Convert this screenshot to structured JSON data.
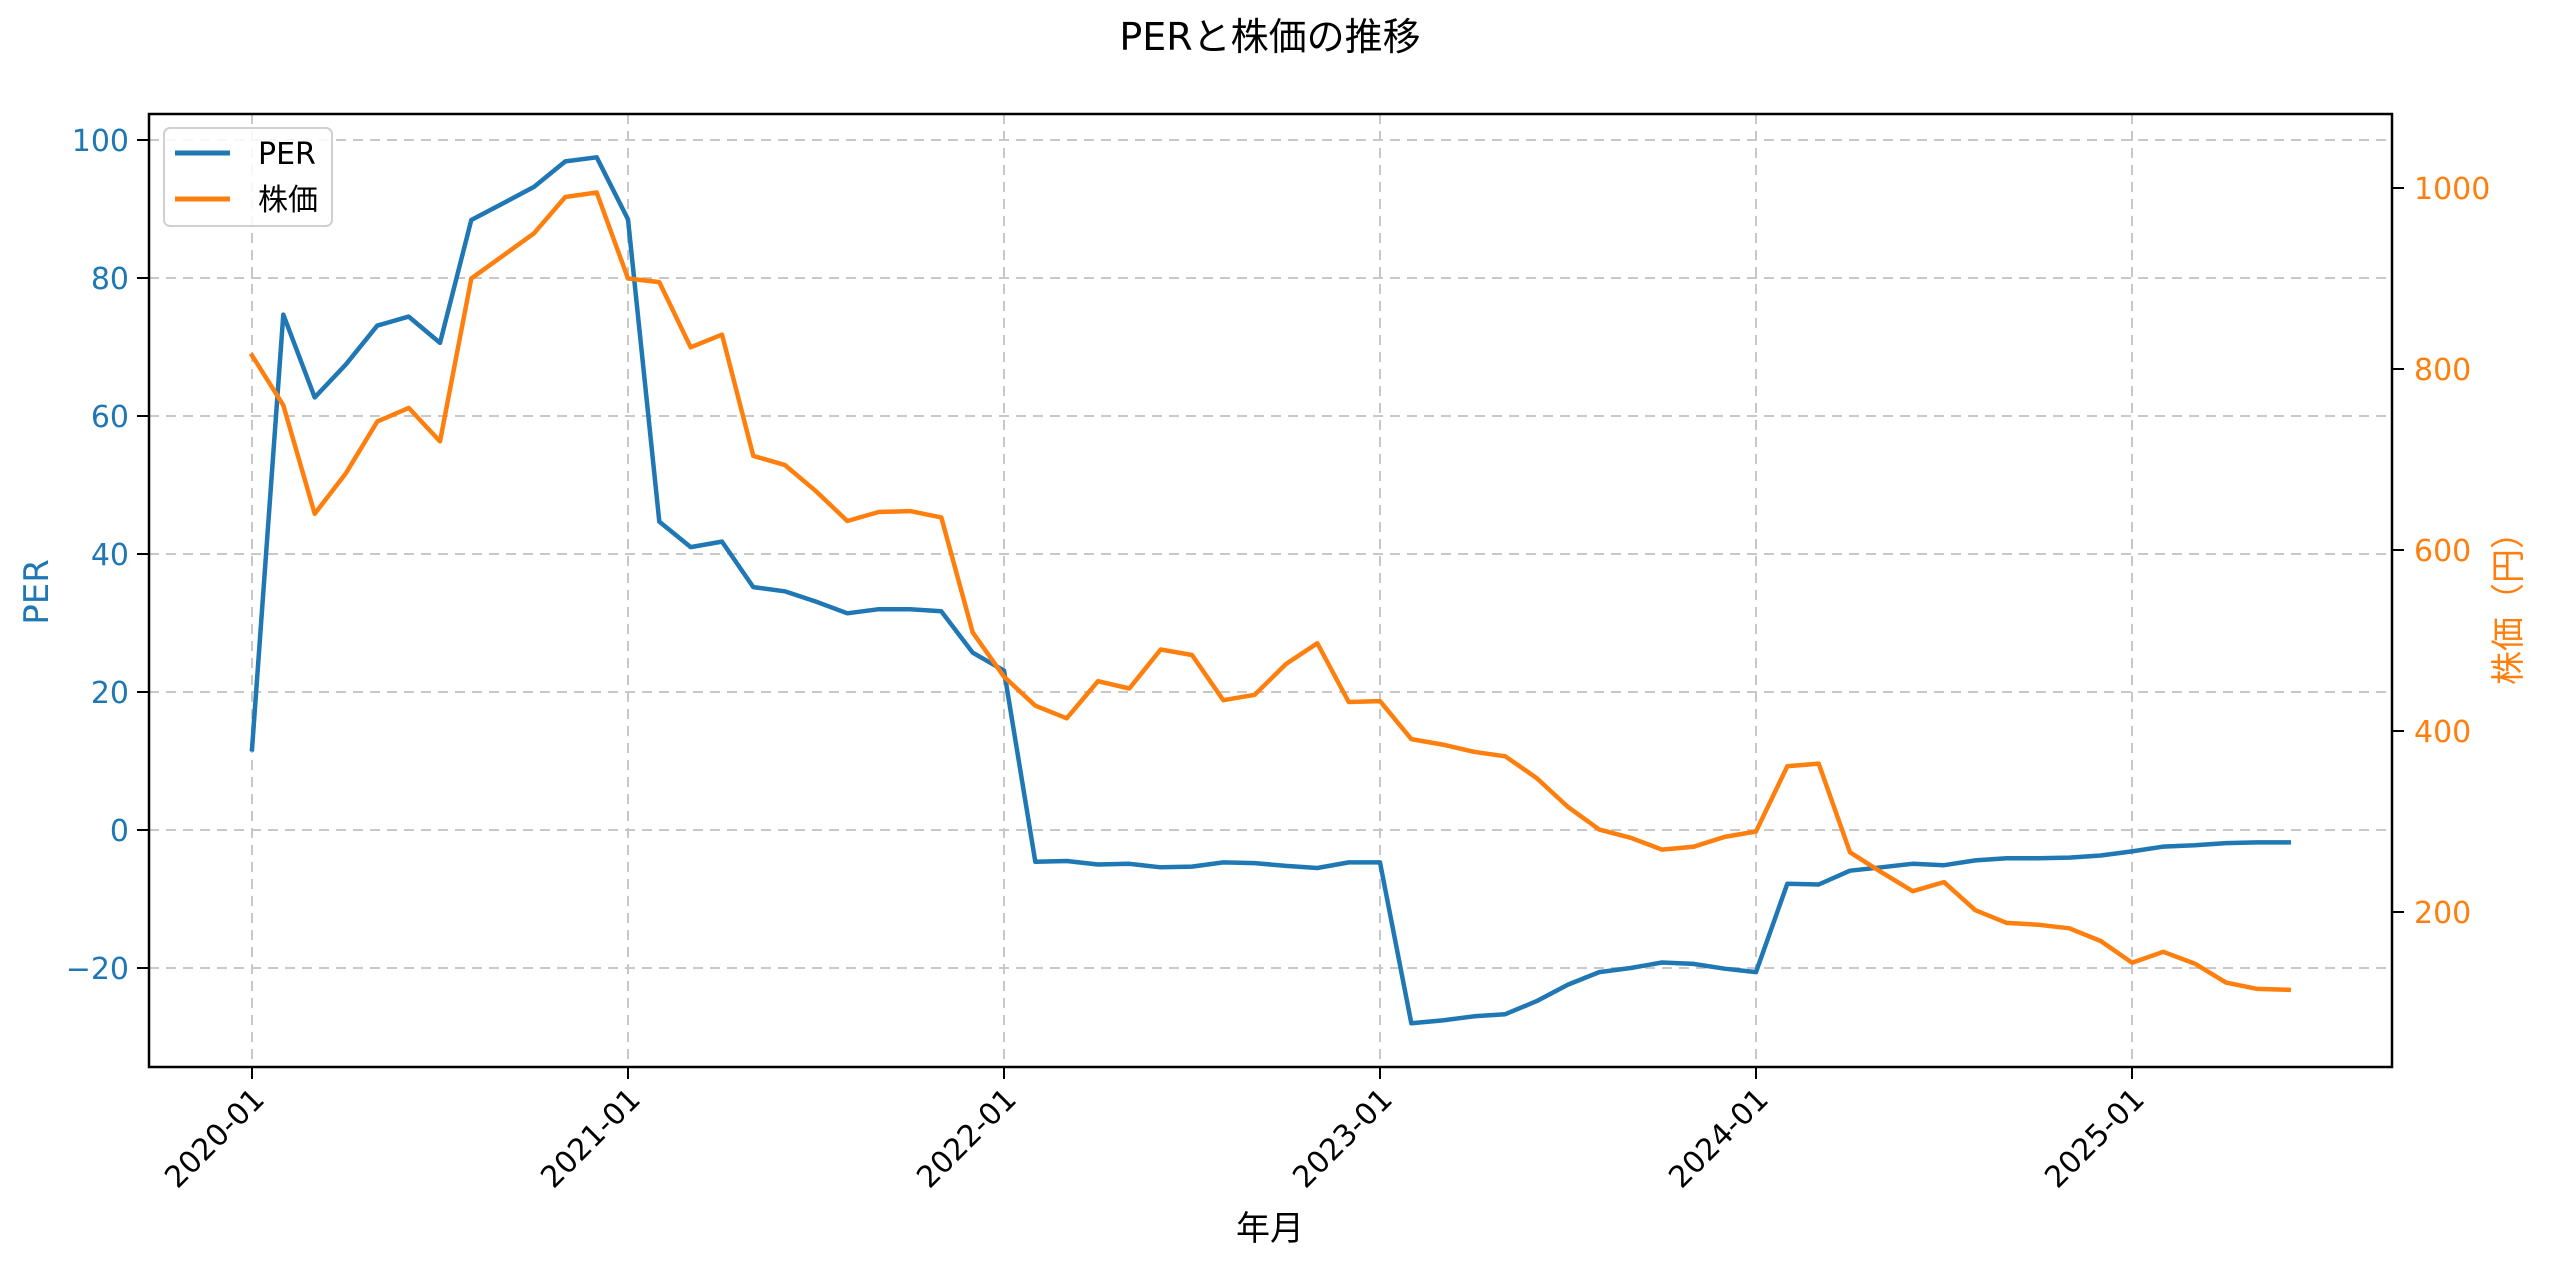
{
  "chart_data": {
    "type": "line",
    "title": "PERと株価の推移",
    "xlabel": "年月",
    "ylabel": "PER",
    "ylabel_right": "株価（円）",
    "x": [
      "2020-01",
      "2020-02",
      "2020-03",
      "2020-04",
      "2020-05",
      "2020-06",
      "2020-07",
      "2020-08",
      "2020-09",
      "2020-10",
      "2020-11",
      "2020-12",
      "2021-01",
      "2021-02",
      "2021-03",
      "2021-04",
      "2021-05",
      "2021-06",
      "2021-07",
      "2021-08",
      "2021-09",
      "2021-10",
      "2021-11",
      "2021-12",
      "2022-01",
      "2022-02",
      "2022-03",
      "2022-04",
      "2022-05",
      "2022-06",
      "2022-07",
      "2022-08",
      "2022-09",
      "2022-10",
      "2022-11",
      "2022-12",
      "2023-01",
      "2023-02",
      "2023-03",
      "2023-04",
      "2023-05",
      "2023-06",
      "2023-07",
      "2023-08",
      "2023-09",
      "2023-10",
      "2023-11",
      "2023-12",
      "2024-01",
      "2024-02",
      "2024-03",
      "2024-04",
      "2024-05",
      "2024-06",
      "2024-07",
      "2024-08",
      "2024-09",
      "2024-10",
      "2024-11",
      "2024-12",
      "2025-01",
      "2025-02",
      "2025-03",
      "2025-04",
      "2025-05",
      "2025-06"
    ],
    "x_ticks": [
      "2020-01",
      "2021-01",
      "2022-01",
      "2023-01",
      "2024-01",
      "2025-01"
    ],
    "series": [
      {
        "name": "PER",
        "axis": "left",
        "color": "#1f77b4",
        "values": [
          11.7,
          74.7,
          62.7,
          67.5,
          73.1,
          74.4,
          70.6,
          88.4,
          90.8,
          93.2,
          96.9,
          97.5,
          88.5,
          44.7,
          41.0,
          41.8,
          35.2,
          34.6,
          33.1,
          31.4,
          32.0,
          32.0,
          31.7,
          25.7,
          23.1,
          -4.6,
          -4.5,
          -5.0,
          -4.9,
          -5.4,
          -5.3,
          -4.7,
          -4.8,
          -5.2,
          -5.5,
          -4.7,
          -4.7,
          -28.0,
          -27.6,
          -27.0,
          -26.7,
          -24.8,
          -22.4,
          -20.6,
          -20.0,
          -19.2,
          -19.4,
          -20.1,
          -20.6,
          -7.8,
          -7.9,
          -5.9,
          -5.4,
          -4.9,
          -5.1,
          -4.4,
          -4.1,
          -4.1,
          -4.0,
          -3.7,
          -3.1,
          -2.4,
          -2.2,
          -1.9,
          -1.8,
          -1.8
        ]
      },
      {
        "name": "株価",
        "axis": "right",
        "color": "#ff7f0e",
        "values": [
          815,
          760,
          640,
          685,
          742,
          757,
          720,
          900,
          925,
          950,
          990,
          995,
          900,
          896,
          824,
          838,
          704,
          694,
          665,
          632,
          642,
          643,
          636,
          509,
          460,
          428,
          414,
          455,
          447,
          490,
          484,
          434,
          440,
          474,
          497,
          432,
          433,
          391,
          385,
          377,
          372,
          348,
          316,
          291,
          282,
          269,
          272,
          283,
          289,
          361,
          364,
          266,
          244,
          223,
          233,
          202,
          188,
          186,
          182,
          168,
          144,
          156,
          143,
          122,
          115,
          114
        ]
      }
    ],
    "ylim": [
      -34,
      104
    ],
    "ylim_right": [
      30,
      1080
    ],
    "y_ticks": [
      -20,
      0,
      20,
      40,
      60,
      80,
      100
    ],
    "y_ticks_right": [
      200,
      400,
      600,
      800,
      1000
    ],
    "grid": true,
    "legend_position": "upper left"
  },
  "legend": {
    "per_label": "PER",
    "price_label": "株価"
  },
  "colors": {
    "per": "#1f77b4",
    "price": "#ff7f0e",
    "grid": "#c8c8c8",
    "axis": "#000000"
  }
}
